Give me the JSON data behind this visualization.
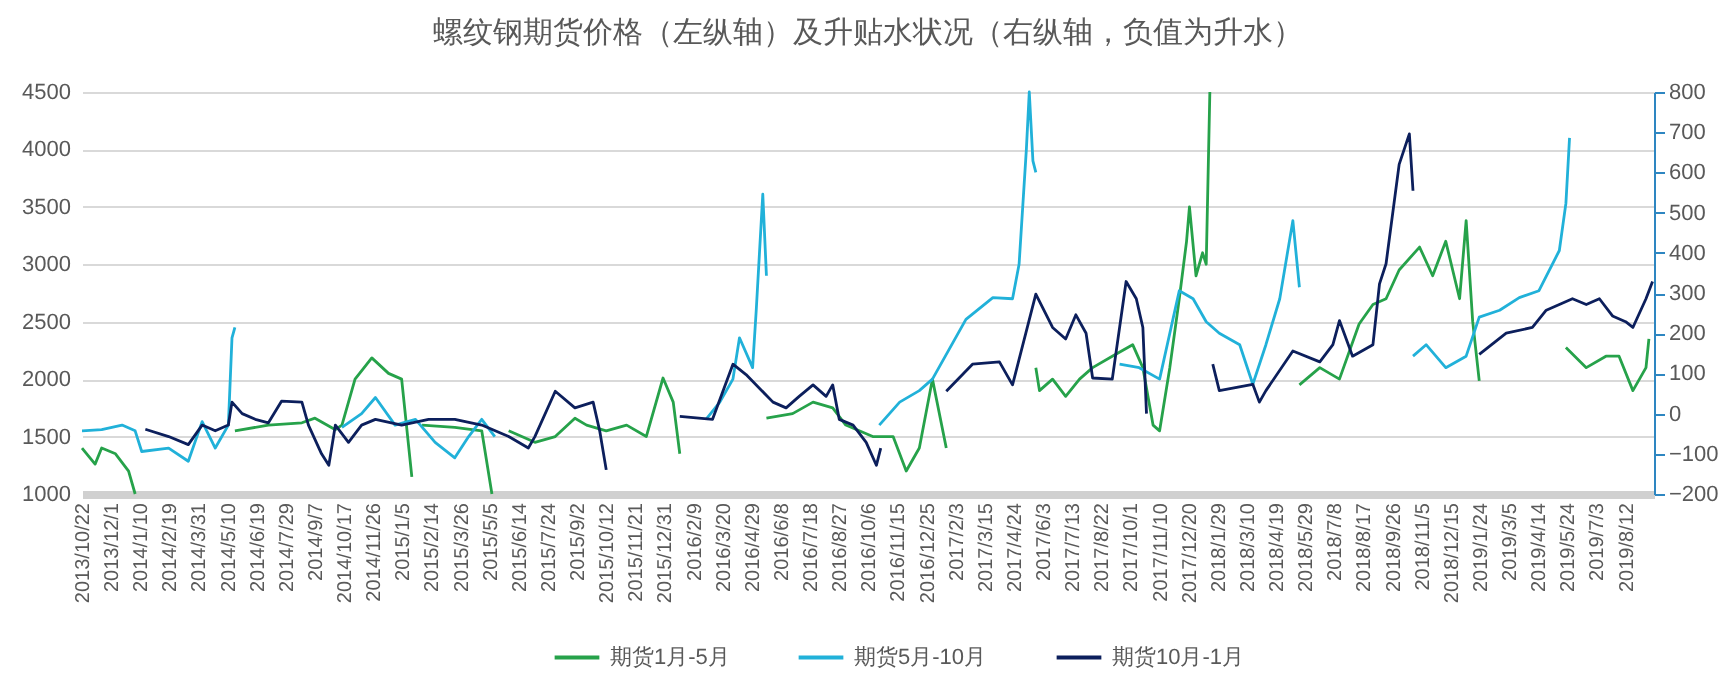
{
  "chart_data": {
    "type": "line",
    "title": "螺纹钢期货价格（左纵轴）及升贴水状况（右纵轴，负值为升水）",
    "xlim": [
      "2013-10-22",
      "2019-09-20"
    ],
    "xticks": [
      {
        "value": "2013-10-22",
        "label": "2013/10/22"
      },
      {
        "value": "2013-12-01",
        "label": "2013/12/1"
      },
      {
        "value": "2014-01-10",
        "label": "2014/1/10"
      },
      {
        "value": "2014-02-19",
        "label": "2014/2/19"
      },
      {
        "value": "2014-03-31",
        "label": "2014/3/31"
      },
      {
        "value": "2014-05-10",
        "label": "2014/5/10"
      },
      {
        "value": "2014-06-19",
        "label": "2014/6/19"
      },
      {
        "value": "2014-07-29",
        "label": "2014/7/29"
      },
      {
        "value": "2014-09-07",
        "label": "2014/9/7"
      },
      {
        "value": "2014-10-17",
        "label": "2014/10/17"
      },
      {
        "value": "2014-11-26",
        "label": "2014/11/26"
      },
      {
        "value": "2015-01-05",
        "label": "2015/1/5"
      },
      {
        "value": "2015-02-14",
        "label": "2015/2/14"
      },
      {
        "value": "2015-03-26",
        "label": "2015/3/26"
      },
      {
        "value": "2015-05-05",
        "label": "2015/5/5"
      },
      {
        "value": "2015-06-14",
        "label": "2015/6/14"
      },
      {
        "value": "2015-07-24",
        "label": "2015/7/24"
      },
      {
        "value": "2015-09-02",
        "label": "2015/9/2"
      },
      {
        "value": "2015-10-12",
        "label": "2015/10/12"
      },
      {
        "value": "2015-11-21",
        "label": "2015/11/21"
      },
      {
        "value": "2015-12-31",
        "label": "2015/12/31"
      },
      {
        "value": "2016-02-09",
        "label": "2016/2/9"
      },
      {
        "value": "2016-03-20",
        "label": "2016/3/20"
      },
      {
        "value": "2016-04-29",
        "label": "2016/4/29"
      },
      {
        "value": "2016-06-08",
        "label": "2016/6/8"
      },
      {
        "value": "2016-07-18",
        "label": "2016/7/18"
      },
      {
        "value": "2016-08-27",
        "label": "2016/8/27"
      },
      {
        "value": "2016-10-06",
        "label": "2016/10/6"
      },
      {
        "value": "2016-11-15",
        "label": "2016/11/15"
      },
      {
        "value": "2016-12-25",
        "label": "2016/12/25"
      },
      {
        "value": "2017-02-03",
        "label": "2017/2/3"
      },
      {
        "value": "2017-03-15",
        "label": "2017/3/15"
      },
      {
        "value": "2017-04-24",
        "label": "2017/4/24"
      },
      {
        "value": "2017-06-03",
        "label": "2017/6/3"
      },
      {
        "value": "2017-07-13",
        "label": "2017/7/13"
      },
      {
        "value": "2017-08-22",
        "label": "2017/8/22"
      },
      {
        "value": "2017-10-01",
        "label": "2017/10/1"
      },
      {
        "value": "2017-11-10",
        "label": "2017/11/10"
      },
      {
        "value": "2017-12-20",
        "label": "2017/12/20"
      },
      {
        "value": "2018-01-29",
        "label": "2018/1/29"
      },
      {
        "value": "2018-03-10",
        "label": "2018/3/10"
      },
      {
        "value": "2018-04-19",
        "label": "2018/4/19"
      },
      {
        "value": "2018-05-29",
        "label": "2018/5/29"
      },
      {
        "value": "2018-07-08",
        "label": "2018/7/8"
      },
      {
        "value": "2018-08-17",
        "label": "2018/8/17"
      },
      {
        "value": "2018-09-26",
        "label": "2018/9/26"
      },
      {
        "value": "2018-11-05",
        "label": "2018/11/5"
      },
      {
        "value": "2018-12-15",
        "label": "2018/12/15"
      },
      {
        "value": "2019-01-24",
        "label": "2019/1/24"
      },
      {
        "value": "2019-03-05",
        "label": "2019/3/5"
      },
      {
        "value": "2019-04-14",
        "label": "2019/4/14"
      },
      {
        "value": "2019-05-24",
        "label": "2019/5/24"
      },
      {
        "value": "2019-07-03",
        "label": "2019/7/3"
      },
      {
        "value": "2019-08-12",
        "label": "2019/8/12"
      }
    ],
    "ylim": [
      1000,
      4500
    ],
    "yticks": [
      1000,
      1500,
      2000,
      2500,
      3000,
      3500,
      4000,
      4500
    ],
    "y2lim": [
      -200,
      800
    ],
    "y2ticks": [
      -200,
      -100,
      0,
      100,
      200,
      300,
      400,
      500,
      600,
      700,
      800
    ],
    "grid": "y",
    "legend": "bottom",
    "series": [
      {
        "name": "期货1月-5月",
        "color": "#26a24a",
        "x": [
          "2013-10-22",
          "2013-11-09",
          "2013-11-18",
          "2013-12-07",
          "2013-12-25",
          "2014-01-03",
          "2014-02-01",
          "2014-05-20",
          "2014-07-05",
          "2014-08-20",
          "2014-09-07",
          "2014-10-05",
          "2014-10-14",
          "2014-11-01",
          "2014-11-24",
          "2014-12-17",
          "2015-01-04",
          "2015-01-18",
          "2015-01-25",
          "2015-02-01",
          "2015-03-18",
          "2015-04-24",
          "2015-05-08",
          "2015-05-15",
          "2015-05-31",
          "2015-07-06",
          "2015-08-03",
          "2015-08-30",
          "2015-09-15",
          "2015-10-12",
          "2015-11-09",
          "2015-12-06",
          "2015-12-29",
          "2016-01-12",
          "2016-01-21",
          "2016-02-01",
          "2016-05-19",
          "2016-06-24",
          "2016-07-22",
          "2016-08-18",
          "2016-09-05",
          "2016-10-12",
          "2016-11-09",
          "2016-11-27",
          "2016-12-15",
          "2017-01-02",
          "2017-01-21",
          "2017-02-15",
          "2017-05-24",
          "2017-05-29",
          "2017-06-16",
          "2017-07-04",
          "2017-07-23",
          "2017-08-10",
          "2017-09-06",
          "2017-10-04",
          "2017-10-18",
          "2017-11-01",
          "2017-11-10",
          "2017-11-24",
          "2017-12-07",
          "2017-12-17",
          "2017-12-21",
          "2017-12-30",
          "2018-01-08",
          "2018-01-13",
          "2018-01-18",
          "2018-02-15",
          "2018-05-21",
          "2018-06-18",
          "2018-07-15",
          "2018-08-11",
          "2018-08-30",
          "2018-09-17",
          "2018-10-05",
          "2018-11-02",
          "2018-11-20",
          "2018-12-08",
          "2018-12-27",
          "2019-01-05",
          "2019-01-14",
          "2019-01-23",
          "2019-02-15",
          "2019-05-22",
          "2019-06-19",
          "2019-07-16",
          "2019-08-03",
          "2019-08-22",
          "2019-09-09",
          "2019-09-13"
        ],
        "values": [
          1400,
          1260,
          1400,
          1350,
          1200,
          1000,
          null,
          1550,
          1600,
          1620,
          1660,
          1560,
          1600,
          2000,
          2185,
          2050,
          2000,
          1150,
          null,
          1600,
          1580,
          1550,
          1000,
          null,
          1550,
          1450,
          1500,
          1660,
          1600,
          1550,
          1600,
          1500,
          2010,
          1800,
          1350,
          null,
          1660,
          1700,
          1800,
          1750,
          1600,
          1500,
          1500,
          1200,
          1400,
          2000,
          1400,
          null,
          2100,
          1900,
          2000,
          1850,
          2000,
          2100,
          2200,
          2300,
          2100,
          1600,
          1550,
          2100,
          2700,
          3200,
          3500,
          2900,
          3100,
          3000,
          4500,
          null,
          1950,
          2100,
          2000,
          2480,
          2650,
          2700,
          2950,
          3150,
          2900,
          3200,
          2700,
          3380,
          2500,
          1985,
          null,
          2275,
          2100,
          2200,
          2200,
          1900,
          2100,
          2350
        ]
      },
      {
        "name": "期货5月-10月",
        "color": "#21b1d9",
        "x": [
          "2013-10-22",
          "2013-11-18",
          "2013-12-16",
          "2014-01-03",
          "2014-01-12",
          "2014-02-18",
          "2014-03-17",
          "2014-04-05",
          "2014-04-23",
          "2014-05-11",
          "2014-05-16",
          "2014-05-20",
          "2014-06-01",
          "2014-10-14",
          "2014-11-10",
          "2014-11-29",
          "2014-12-26",
          "2015-01-23",
          "2015-02-19",
          "2015-03-18",
          "2015-04-06",
          "2015-04-24",
          "2015-05-12",
          "2015-06-01",
          "2016-02-26",
          "2016-03-16",
          "2016-04-03",
          "2016-04-12",
          "2016-04-30",
          "2016-05-05",
          "2016-05-14",
          "2016-05-19",
          "2016-06-01",
          "2016-10-21",
          "2016-11-18",
          "2016-12-15",
          "2017-01-02",
          "2017-02-17",
          "2017-03-26",
          "2017-04-22",
          "2017-05-01",
          "2017-05-11",
          "2017-05-15",
          "2017-05-20",
          "2017-05-24",
          "2017-06-15",
          "2017-09-16",
          "2017-10-13",
          "2017-11-10",
          "2017-12-07",
          "2017-12-26",
          "2018-01-13",
          "2018-01-31",
          "2018-02-28",
          "2018-03-18",
          "2018-04-05",
          "2018-04-24",
          "2018-05-12",
          "2018-05-21",
          "2018-06-10",
          "2018-10-24",
          "2018-11-11",
          "2018-12-08",
          "2019-01-05",
          "2019-01-23",
          "2019-02-20",
          "2019-03-19",
          "2019-04-15",
          "2019-05-13",
          "2019-05-22",
          "2019-05-27"
        ],
        "values": [
          1550,
          1560,
          1600,
          1550,
          1370,
          1400,
          1285,
          1630,
          1400,
          1600,
          2360,
          2450,
          null,
          1580,
          1700,
          1840,
          1600,
          1650,
          1450,
          1315,
          1500,
          1650,
          1500,
          null,
          1650,
          1800,
          2000,
          2360,
          2100,
          2600,
          3610,
          2900,
          null,
          1600,
          1800,
          1900,
          2000,
          2520,
          2710,
          2700,
          3000,
          4000,
          4500,
          3900,
          3800,
          null,
          2130,
          2100,
          2000,
          2770,
          2700,
          2500,
          2400,
          2300,
          1955,
          2300,
          2700,
          3380,
          2800,
          null,
          2200,
          2300,
          2100,
          2200,
          2540,
          2600,
          2710,
          2770,
          3120,
          3530,
          4100
        ]
      },
      {
        "name": "期货10月-1月",
        "color": "#0c1f5c",
        "x": [
          "2014-01-17",
          "2014-02-18",
          "2014-03-17",
          "2014-04-05",
          "2014-04-23",
          "2014-05-11",
          "2014-05-16",
          "2014-05-30",
          "2014-06-17",
          "2014-07-05",
          "2014-07-23",
          "2014-08-20",
          "2014-08-29",
          "2014-09-16",
          "2014-09-26",
          "2014-10-05",
          "2014-10-23",
          "2014-11-10",
          "2014-11-29",
          "2015-01-04",
          "2015-02-10",
          "2015-03-18",
          "2015-04-24",
          "2015-05-31",
          "2015-06-27",
          "2015-07-06",
          "2015-08-03",
          "2015-08-30",
          "2015-09-24",
          "2015-10-03",
          "2015-10-12",
          "2015-10-20",
          "2016-01-21",
          "2016-03-06",
          "2016-04-03",
          "2016-04-21",
          "2016-05-28",
          "2016-06-15",
          "2016-07-03",
          "2016-07-22",
          "2016-08-09",
          "2016-08-18",
          "2016-08-27",
          "2016-09-15",
          "2016-10-03",
          "2016-10-17",
          "2016-10-23",
          "2016-11-05",
          "2017-01-21",
          "2017-02-26",
          "2017-04-04",
          "2017-04-22",
          "2017-05-24",
          "2017-06-16",
          "2017-07-04",
          "2017-07-18",
          "2017-08-01",
          "2017-08-10",
          "2017-09-06",
          "2017-09-25",
          "2017-10-09",
          "2017-10-18",
          "2017-10-23",
          "2017-11-15",
          "2018-01-22",
          "2018-01-31",
          "2018-03-18",
          "2018-03-27",
          "2018-04-05",
          "2018-05-12",
          "2018-06-18",
          "2018-07-06",
          "2018-07-15",
          "2018-08-02",
          "2018-08-30",
          "2018-09-08",
          "2018-09-17",
          "2018-10-05",
          "2018-10-19",
          "2018-10-24",
          "2018-11-15",
          "2019-01-23",
          "2019-03-01",
          "2019-04-06",
          "2019-04-25",
          "2019-05-31",
          "2019-06-19",
          "2019-07-07",
          "2019-07-25",
          "2019-08-12",
          "2019-08-22",
          "2019-09-09",
          "2019-09-18"
        ],
        "values": [
          1564,
          1500,
          1430,
          1600,
          1550,
          1600,
          1800,
          1700,
          1650,
          1620,
          1808,
          1800,
          1600,
          1350,
          1250,
          1600,
          1450,
          1600,
          1650,
          1600,
          1650,
          1650,
          1600,
          1500,
          1400,
          1500,
          1895,
          1750,
          1800,
          1550,
          1210,
          null,
          1675,
          1650,
          2130,
          2040,
          1800,
          1750,
          1850,
          1950,
          1850,
          1950,
          1650,
          1600,
          1450,
          1250,
          1400,
          null,
          1895,
          2130,
          2150,
          1950,
          2740,
          2450,
          2350,
          2560,
          2400,
          2010,
          2000,
          2850,
          2700,
          2450,
          1700,
          null,
          2130,
          1900,
          1955,
          1800,
          1900,
          2245,
          2150,
          2300,
          2510,
          2200,
          2300,
          2830,
          3005,
          3870,
          4135,
          3640,
          null,
          2215,
          2400,
          2450,
          2600,
          2700,
          2650,
          2700,
          2550,
          2500,
          2450,
          2700,
          2850
        ]
      }
    ]
  }
}
